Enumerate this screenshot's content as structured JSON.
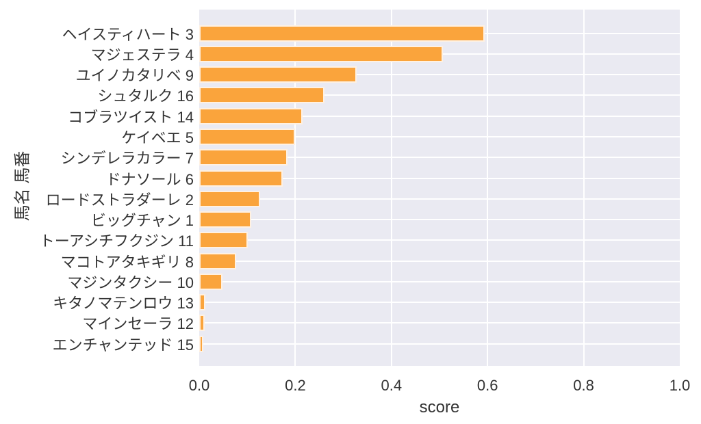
{
  "chart_data": {
    "type": "bar",
    "orientation": "horizontal",
    "title": "",
    "xlabel": "score",
    "ylabel": "馬名 馬番",
    "xlim": [
      0.0,
      1.0
    ],
    "xticks": [
      "0.0",
      "0.2",
      "0.4",
      "0.6",
      "0.8",
      "1.0"
    ],
    "xtick_values": [
      0.0,
      0.2,
      0.4,
      0.6,
      0.8,
      1.0
    ],
    "grid": true,
    "legend": false,
    "categories": [
      "ヘイスティハート 3",
      "マジェステラ 4",
      "ユイノカタリベ 9",
      "シュタルク 16",
      "コブラツイスト 14",
      "ケイベエ 5",
      "シンデレラカラー 7",
      "ドナソール 6",
      "ロードストラダーレ 2",
      "ビッグチャン 1",
      "トーアシチフクジン 11",
      "マコトアタキギリ 8",
      "マジンタクシー 10",
      "キタノマテンロウ 13",
      "マインセーラ 12",
      "エンチャンテッド 15"
    ],
    "values": [
      0.594,
      0.507,
      0.328,
      0.261,
      0.215,
      0.199,
      0.184,
      0.174,
      0.127,
      0.108,
      0.101,
      0.077,
      0.048,
      0.013,
      0.011,
      0.006
    ],
    "colors": {
      "bar": "#FAA43C",
      "bar_edge": "#FFFFFF",
      "plot_background": "#EAEAF2",
      "gridline": "#FFFFFF",
      "text": "#333333",
      "figure_background": "#FFFFFF"
    }
  }
}
